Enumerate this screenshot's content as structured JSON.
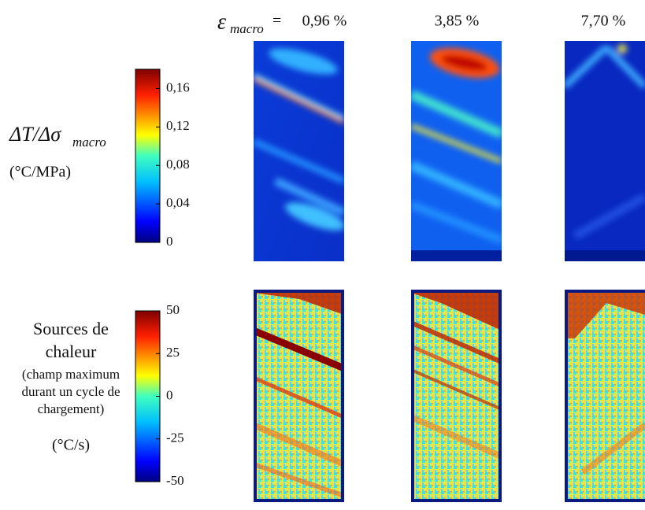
{
  "header": {
    "symbol": "ε",
    "symbol_subscript": "macro",
    "equals": "=",
    "columns": [
      "0,96 %",
      "3,85 %",
      "7,70 %"
    ]
  },
  "rows": [
    {
      "label": "ΔT/Δσ",
      "label_subscript": "macro",
      "unit": "(°C/MPa)",
      "colorbar": {
        "lim": [
          0,
          0.18
        ],
        "ticks": [
          {
            "value": 0.16,
            "label": "0,16"
          },
          {
            "value": 0.12,
            "label": "0,12"
          },
          {
            "value": 0.08,
            "label": "0,08"
          },
          {
            "value": 0.04,
            "label": "0,04"
          },
          0
        ]
      }
    },
    {
      "label_lines": [
        "Sources de",
        "chaleur",
        "(champ maximum",
        "durant un cycle de",
        "chargement)"
      ],
      "unit": "(°C/s)",
      "colorbar": {
        "lim": [
          -50,
          50
        ],
        "ticks": [
          50,
          25,
          0,
          -25,
          -50
        ]
      }
    }
  ]
}
